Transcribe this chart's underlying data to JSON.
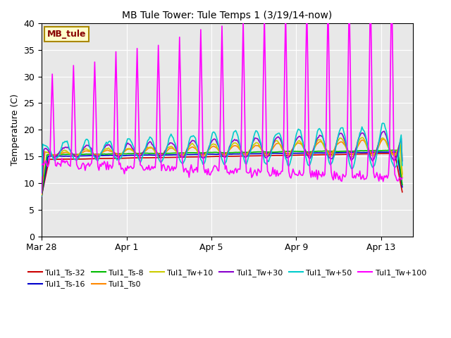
{
  "title": "MB Tule Tower: Tule Temps 1 (3/19/14-now)",
  "ylabel": "Temperature (C)",
  "xlim_days": [
    0,
    17.5
  ],
  "ylim": [
    0,
    40
  ],
  "yticks": [
    0,
    5,
    10,
    15,
    20,
    25,
    30,
    35,
    40
  ],
  "xtick_positions": [
    0,
    4,
    8,
    12,
    16
  ],
  "xtick_labels": [
    "Mar 28",
    "Apr 1",
    "Apr 5",
    "Apr 9",
    "Apr 13"
  ],
  "background_color": "#e8e8e8",
  "fig_background": "#ffffff",
  "watermark_text": "MB_tule",
  "watermark_bg": "#ffffcc",
  "watermark_border": "#aa8800",
  "watermark_text_color": "#880000",
  "series": [
    {
      "label": "Tul1_Ts-32",
      "color": "#cc0000",
      "lw": 1.2,
      "zorder": 4
    },
    {
      "label": "Tul1_Ts-16",
      "color": "#0000cc",
      "lw": 1.2,
      "zorder": 4
    },
    {
      "label": "Tul1_Ts-8",
      "color": "#00bb00",
      "lw": 1.2,
      "zorder": 4
    },
    {
      "label": "Tul1_Ts0",
      "color": "#ff8800",
      "lw": 1.2,
      "zorder": 4
    },
    {
      "label": "Tul1_Tw+10",
      "color": "#cccc00",
      "lw": 1.2,
      "zorder": 4
    },
    {
      "label": "Tul1_Tw+30",
      "color": "#8800cc",
      "lw": 1.2,
      "zorder": 4
    },
    {
      "label": "Tul1_Tw+50",
      "color": "#00cccc",
      "lw": 1.2,
      "zorder": 5
    },
    {
      "label": "Tul1_Tw+100",
      "color": "#ff00ff",
      "lw": 1.2,
      "zorder": 6
    }
  ],
  "legend_ncol": 6,
  "title_fontsize": 10,
  "tick_fontsize": 9,
  "legend_fontsize": 8
}
